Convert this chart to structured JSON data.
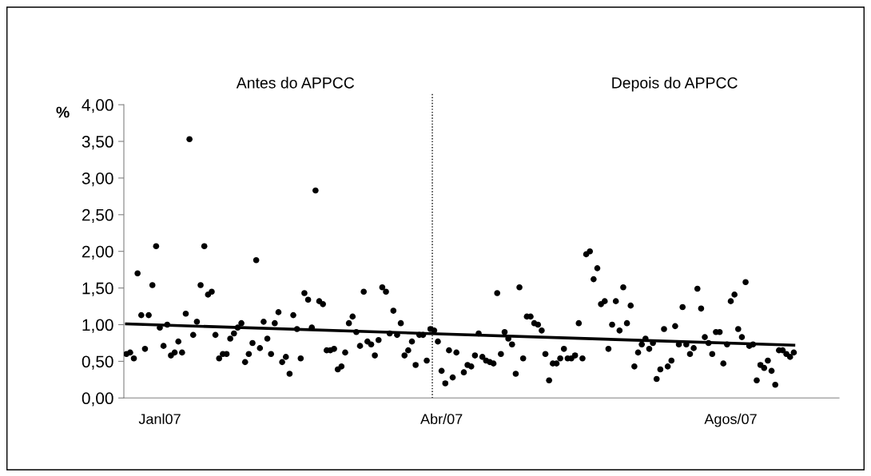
{
  "chart_data": {
    "type": "scatter",
    "ylabel": "%",
    "annotations": [
      "Antes do APPCC",
      "Depois do APPCC"
    ],
    "categories": [
      null,
      null,
      null,
      null,
      null,
      null,
      null,
      null,
      null,
      "Janl07",
      null,
      null,
      null,
      null,
      null,
      null,
      null,
      null,
      null,
      null,
      null,
      null,
      null,
      null,
      null,
      null,
      null,
      null,
      null,
      null,
      null,
      null,
      null,
      null,
      null,
      null,
      null,
      null,
      null,
      null,
      null,
      null,
      null,
      null,
      null,
      null,
      null,
      null,
      null,
      null,
      null,
      null,
      null,
      null,
      null,
      null,
      null,
      null,
      null,
      null,
      null,
      null,
      null,
      null,
      null,
      null,
      null,
      null,
      null,
      null,
      null,
      null,
      null,
      null,
      null,
      null,
      null,
      null,
      null,
      null,
      null,
      null,
      null,
      null,
      null,
      "Abr/07",
      null,
      null,
      null,
      null,
      null,
      null,
      null,
      null,
      null,
      null,
      null,
      null,
      null,
      null,
      null,
      null,
      null,
      null,
      null,
      null,
      null,
      null,
      null,
      null,
      null,
      null,
      null,
      null,
      null,
      null,
      null,
      null,
      null,
      null,
      null,
      null,
      null,
      null,
      null,
      null,
      null,
      null,
      null,
      null,
      null,
      null,
      null,
      null,
      null,
      null,
      null,
      null,
      null,
      null,
      null,
      null,
      null,
      null,
      null,
      null,
      null,
      null,
      null,
      null,
      null,
      null,
      null,
      null,
      null,
      null,
      null,
      null,
      null,
      null,
      null,
      null,
      null,
      "Agos/07",
      null,
      null,
      null,
      null,
      null,
      null,
      null,
      null,
      null,
      null,
      null,
      null,
      null,
      null,
      null,
      null,
      null
    ],
    "ylim": [
      0,
      4
    ],
    "yticks": [
      {
        "value": 0,
        "label": "0,00"
      },
      {
        "value": 0.5,
        "label": "0,50"
      },
      {
        "value": 1,
        "label": "1,00"
      },
      {
        "value": 1.5,
        "label": "1,50"
      },
      {
        "value": 2,
        "label": "2,00"
      },
      {
        "value": 2.5,
        "label": "2,50"
      },
      {
        "value": 3,
        "label": "3,00"
      },
      {
        "value": 3.5,
        "label": "3,50"
      },
      {
        "value": 4,
        "label": "4,00"
      }
    ],
    "grid": false,
    "legend": false,
    "marker": "circle",
    "series": [
      {
        "color": "#000000",
        "values": [
          0.6,
          0.62,
          0.54,
          1.7,
          1.13,
          0.67,
          1.13,
          1.54,
          2.07,
          0.96,
          0.71,
          1.0,
          0.58,
          0.62,
          0.77,
          0.62,
          1.15,
          3.53,
          0.86,
          1.04,
          1.54,
          2.07,
          1.41,
          1.45,
          0.86,
          0.54,
          0.6,
          0.6,
          0.81,
          0.88,
          0.96,
          1.02,
          0.49,
          0.6,
          0.75,
          1.88,
          0.68,
          1.04,
          0.81,
          0.6,
          1.02,
          1.17,
          0.49,
          0.56,
          0.33,
          1.13,
          0.94,
          0.54,
          1.43,
          1.34,
          0.96,
          2.83,
          1.32,
          1.28,
          0.65,
          0.65,
          0.67,
          0.39,
          0.43,
          0.62,
          1.02,
          1.11,
          0.9,
          0.71,
          1.45,
          0.77,
          0.73,
          0.58,
          0.79,
          1.51,
          1.45,
          0.88,
          1.19,
          0.86,
          1.02,
          0.58,
          0.65,
          0.77,
          0.45,
          0.86,
          0.86,
          0.51,
          0.94,
          0.92,
          0.77,
          0.37,
          0.2,
          0.65,
          0.28,
          0.62,
          null,
          0.35,
          0.45,
          0.43,
          0.58,
          0.88,
          0.56,
          0.51,
          0.49,
          0.47,
          1.43,
          0.6,
          0.9,
          0.81,
          0.73,
          0.33,
          1.51,
          0.54,
          1.11,
          1.11,
          1.02,
          1.0,
          0.92,
          0.6,
          0.24,
          0.47,
          0.47,
          0.54,
          0.67,
          0.54,
          0.54,
          0.58,
          1.02,
          0.54,
          1.96,
          2.0,
          1.62,
          1.77,
          1.28,
          1.32,
          0.67,
          1.0,
          1.32,
          0.92,
          1.51,
          1.02,
          1.26,
          0.43,
          0.62,
          0.73,
          0.81,
          0.67,
          0.75,
          0.26,
          0.39,
          0.94,
          0.43,
          0.51,
          0.98,
          0.73,
          1.24,
          0.73,
          0.6,
          0.68,
          1.49,
          1.22,
          0.83,
          0.75,
          0.6,
          0.9,
          0.9,
          0.47,
          0.73,
          1.32,
          1.41,
          0.94,
          0.83,
          1.58,
          0.71,
          0.73,
          0.24,
          0.45,
          0.41,
          0.51,
          0.37,
          0.18,
          0.65,
          0.65,
          0.6,
          0.56,
          0.62
        ]
      },
      {
        "type": "line",
        "marker": "none",
        "color": "#000000",
        "values": [
          1.01,
          null,
          null,
          null,
          null,
          null,
          null,
          null,
          null,
          null,
          null,
          null,
          null,
          null,
          null,
          null,
          null,
          null,
          null,
          null,
          null,
          null,
          null,
          null,
          null,
          null,
          null,
          null,
          null,
          null,
          null,
          null,
          null,
          null,
          null,
          null,
          null,
          null,
          null,
          null,
          null,
          null,
          null,
          null,
          null,
          null,
          null,
          null,
          null,
          null,
          null,
          null,
          null,
          null,
          null,
          null,
          null,
          null,
          null,
          null,
          null,
          null,
          null,
          null,
          null,
          null,
          null,
          null,
          null,
          null,
          null,
          null,
          null,
          null,
          null,
          null,
          null,
          null,
          null,
          null,
          null,
          null,
          null,
          null,
          null,
          null,
          null,
          null,
          null,
          null,
          null,
          null,
          null,
          null,
          null,
          null,
          null,
          null,
          null,
          null,
          null,
          null,
          null,
          null,
          null,
          null,
          null,
          null,
          null,
          null,
          null,
          null,
          null,
          null,
          null,
          null,
          null,
          null,
          null,
          null,
          null,
          null,
          null,
          null,
          null,
          null,
          null,
          null,
          null,
          null,
          null,
          null,
          null,
          null,
          null,
          null,
          null,
          null,
          null,
          null,
          null,
          null,
          null,
          null,
          null,
          null,
          null,
          null,
          null,
          null,
          null,
          null,
          null,
          null,
          null,
          null,
          null,
          null,
          null,
          null,
          null,
          null,
          null,
          null,
          null,
          null,
          null,
          null,
          null,
          null,
          null,
          null,
          null,
          null,
          null,
          null,
          null,
          null,
          null,
          null,
          0.72
        ]
      }
    ]
  }
}
